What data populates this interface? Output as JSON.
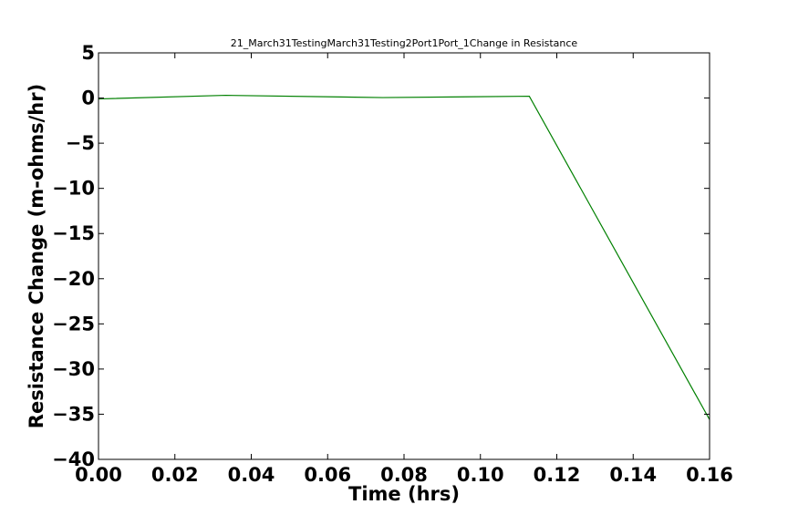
{
  "chart_data": {
    "type": "line",
    "title": "21_March31TestingMarch31Testing2Port1Port_1Change in Resistance",
    "xlabel": "Time (hrs)",
    "ylabel": "Resistance Change (m-ohms/hr)",
    "xlim": [
      0.0,
      0.16
    ],
    "ylim": [
      -40,
      5
    ],
    "xticks": [
      "0.00",
      "0.02",
      "0.04",
      "0.06",
      "0.08",
      "0.10",
      "0.12",
      "0.14",
      "0.16"
    ],
    "yticks": [
      "5",
      "0",
      "−5",
      "−10",
      "−15",
      "−20",
      "−25",
      "−30",
      "−35",
      "−40"
    ],
    "grid": false,
    "series": [
      {
        "color": "#008000",
        "x": [
          0.0,
          0.0333,
          0.0744,
          0.1128,
          0.16
        ],
        "y": [
          -0.1,
          0.3,
          0.05,
          0.2,
          -35.6
        ]
      }
    ]
  }
}
